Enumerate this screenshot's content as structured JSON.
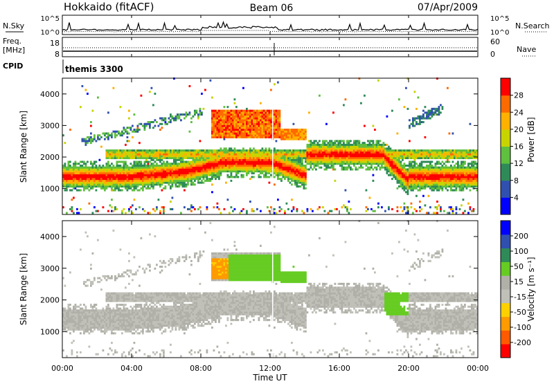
{
  "header": {
    "left": "Hokkaido (fitACF)",
    "center": "Beam 06",
    "right": "07/Apr/2009"
  },
  "colors": {
    "power_scale": [
      "#0000ff",
      "#3050b0",
      "#2e8b57",
      "#5fbf3f",
      "#c8d400",
      "#ffb000",
      "#ff6a00",
      "#ff0000"
    ],
    "velocity_scale": [
      "#ff0000",
      "#ff5a00",
      "#ff9a00",
      "#ffd000",
      "#c0c0b8",
      "#b0b0a8",
      "#66cc22",
      "#2e8b57",
      "#3050b0",
      "#0000ff"
    ]
  },
  "chart_data": [
    {
      "type": "line",
      "panel": "noise",
      "left_label": "N.Sky",
      "right_label": "N.Search",
      "left_ticks": [
        "10^5",
        "10^0"
      ],
      "right_ticks": [
        "10^5",
        "10^0"
      ],
      "series": [
        {
          "name": "N.Sky",
          "style": "solid"
        },
        {
          "name": "N.Search",
          "style": "dotted"
        }
      ]
    },
    {
      "type": "line",
      "panel": "frequency",
      "left_label": "Freq.",
      "left_unit": "[MHz]",
      "left_ticks": [
        "18",
        "8"
      ],
      "right_label": "Nave",
      "right_ticks": [
        "60",
        "0"
      ]
    },
    {
      "type": "table",
      "panel": "cpid",
      "label": "CPID",
      "value": "themis 3300"
    },
    {
      "type": "heatmap",
      "panel": "power",
      "ylabel": "Slant Range [km]",
      "ylim": [
        180,
        4500
      ],
      "yticks": [
        1000,
        2000,
        3000,
        4000
      ],
      "xlim": [
        0,
        24
      ],
      "colorbar_label": "Power [dB]",
      "colorbar_ticks": [
        "4",
        "8",
        "12",
        "16",
        "20",
        "24",
        "28"
      ]
    },
    {
      "type": "heatmap",
      "panel": "velocity",
      "ylabel": "Slant Range [km]",
      "ylim": [
        180,
        4500
      ],
      "yticks": [
        1000,
        2000,
        3000,
        4000
      ],
      "xlim": [
        0,
        24
      ],
      "xlabel": "Time UT",
      "xticks": [
        "00:00",
        "04:00",
        "08:00",
        "12:00",
        "16:00",
        "20:00",
        "00:00"
      ],
      "colorbar_label": "Velocity [m s⁻¹]",
      "colorbar_ticks": [
        "200",
        "100",
        "50",
        "15",
        "-15",
        "-50",
        "-100",
        "-200"
      ]
    }
  ]
}
